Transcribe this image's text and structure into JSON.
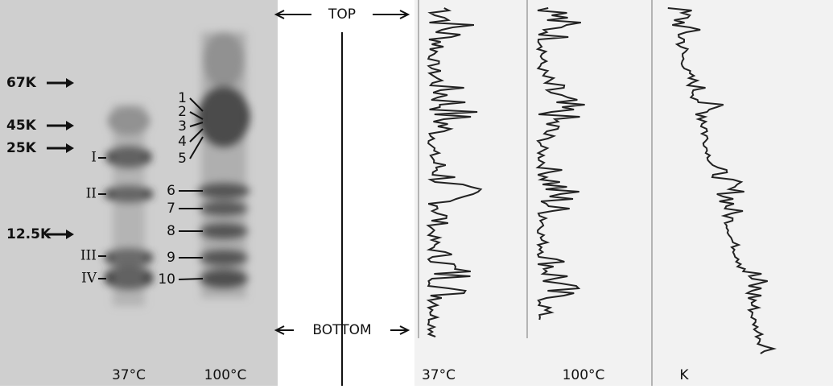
{
  "gel": {
    "markers": [
      "67K",
      "45K",
      "25K",
      "12.5K"
    ],
    "roman_bands": [
      "I",
      "II",
      "III",
      "IV"
    ],
    "numbered_bands": [
      "1",
      "2",
      "3",
      "4",
      "5",
      "6",
      "7",
      "8",
      "9",
      "10"
    ],
    "lanes": [
      "37°C",
      "100°C"
    ]
  },
  "scan": {
    "top": "TOP",
    "bottom": "BOTTOM",
    "traces": [
      "37°C",
      "100°C",
      "K"
    ]
  }
}
